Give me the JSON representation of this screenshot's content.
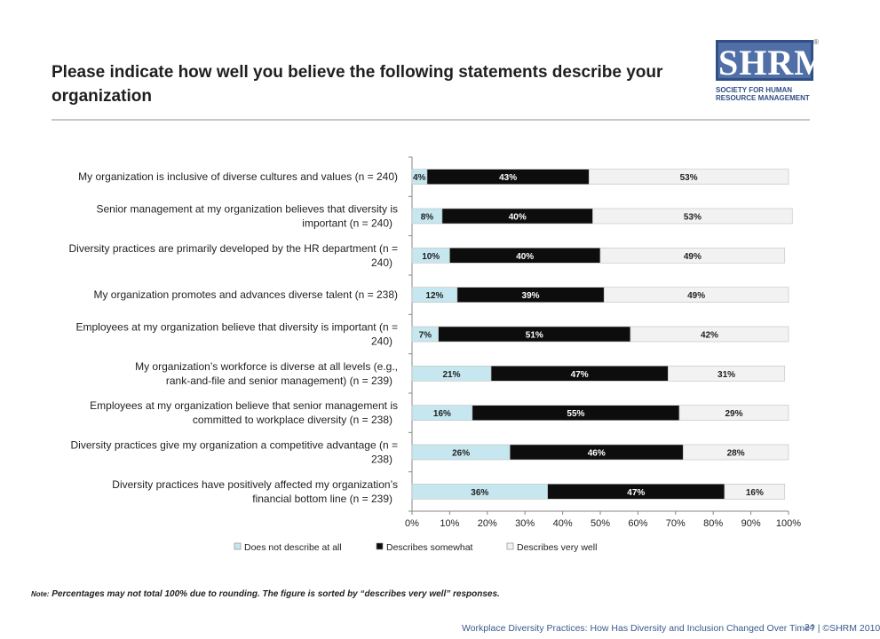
{
  "title": "Please indicate how well you believe the following statements describe your organization",
  "logo": {
    "mark": "SHRM",
    "reg": "®",
    "line1": "SOCIETY FOR HUMAN",
    "line2": "RESOURCE MANAGEMENT"
  },
  "note_label": "Note:",
  "note_text": " Percentages may not total 100% due to rounding. The figure is sorted by “describes very well” responses.",
  "footer": "Workplace Diversity Practices: How Has Diversity and Inclusion Changed Over Time? | ©SHRM 2010",
  "page_number": "24",
  "colors": {
    "not_at_all": "#c6e7ef",
    "somewhat": "#0d0d0d",
    "very_well": "#f2f2f2",
    "axis": "#868686"
  },
  "chart_data": {
    "type": "bar",
    "orientation": "horizontal",
    "stacked": true,
    "xlim": [
      0,
      100
    ],
    "xticks": [
      "0%",
      "10%",
      "20%",
      "30%",
      "40%",
      "50%",
      "60%",
      "70%",
      "80%",
      "90%",
      "100%"
    ],
    "legend_position": "bottom",
    "categories": [
      "My organization is inclusive of diverse cultures and values (n = 240)",
      "Senior management at my organization believes that diversity is important (n = 240)",
      "Diversity practices are primarily developed by the HR department (n = 240)",
      "My organization promotes and advances diverse talent (n = 238)",
      "Employees at my organization believe that diversity is important (n = 240)",
      "My organization’s workforce is diverse at all levels (e.g., rank-and-file and senior management) (n = 239)",
      "Employees at my organization believe that senior management is committed to workplace diversity (n = 238)",
      "Diversity practices give my organization a competitive advantage (n = 238)",
      "Diversity practices have positively affected my organization’s financial bottom line (n = 239)"
    ],
    "series": [
      {
        "name": "Does not describe at all",
        "values": [
          4,
          8,
          10,
          12,
          7,
          21,
          16,
          26,
          36
        ],
        "labels": [
          "4%",
          "8%",
          "10%",
          "12%",
          "7%",
          "21%",
          "16%",
          "26%",
          "36%"
        ]
      },
      {
        "name": "Describes somewhat",
        "values": [
          43,
          40,
          40,
          39,
          51,
          47,
          55,
          46,
          47
        ],
        "labels": [
          "43%",
          "40%",
          "40%",
          "39%",
          "51%",
          "47%",
          "55%",
          "46%",
          "47%"
        ]
      },
      {
        "name": "Describes very well",
        "values": [
          53,
          53,
          49,
          49,
          42,
          31,
          29,
          28,
          16
        ],
        "labels": [
          "53%",
          "53%",
          "49%",
          "49%",
          "42%",
          "31%",
          "29%",
          "28%",
          "16%"
        ]
      }
    ]
  }
}
